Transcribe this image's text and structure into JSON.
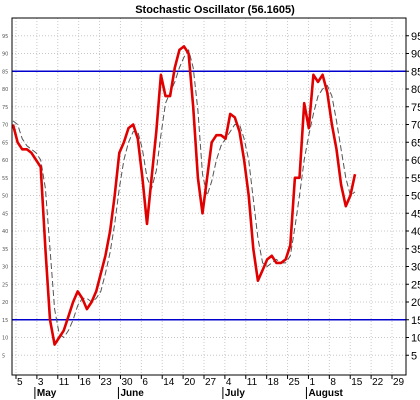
{
  "chart_data": {
    "type": "line",
    "title": "Stochastic Oscillator (56.1605)",
    "ylim": [
      0,
      100
    ],
    "y_ticks": [
      5,
      10,
      15,
      20,
      25,
      30,
      35,
      40,
      45,
      50,
      55,
      60,
      65,
      70,
      75,
      80,
      85,
      90,
      95
    ],
    "x_ticks": [
      "5",
      "3",
      "11",
      "16",
      "23",
      "30",
      "6",
      "14",
      "20",
      "27",
      "4",
      "11",
      "18",
      "25",
      "1",
      "8",
      "15",
      "22",
      "29"
    ],
    "month_labels": [
      "May",
      "June",
      "July",
      "August"
    ],
    "reference_lines": [
      15,
      85
    ],
    "grid": true,
    "colors": {
      "main": "#e00000",
      "signal": "#555555",
      "reference": "#0000cc",
      "grid": "#c8c8c8"
    },
    "series": [
      {
        "style": "solid",
        "values": [
          70,
          65,
          63,
          63,
          62,
          60,
          58,
          35,
          15,
          8,
          10,
          12,
          16,
          20,
          23,
          21,
          18,
          20,
          23,
          28,
          33,
          40,
          50,
          62,
          65,
          69,
          70,
          66,
          55,
          42,
          55,
          68,
          84,
          78,
          78,
          86,
          91,
          92,
          90,
          75,
          55,
          45,
          55,
          65,
          67,
          67,
          66,
          73,
          72,
          68,
          60,
          50,
          35,
          26,
          29,
          32,
          33,
          31,
          31,
          32,
          36,
          55,
          55,
          76,
          69,
          84,
          82,
          84,
          79,
          70,
          63,
          53,
          47,
          50,
          56
        ]
      },
      {
        "style": "dashed",
        "values": [
          71,
          70,
          66,
          64,
          63,
          62,
          60,
          52,
          35,
          18,
          11,
          10,
          12,
          15,
          19,
          21,
          21,
          20,
          21,
          23,
          28,
          34,
          42,
          52,
          60,
          65,
          68,
          68,
          63,
          55,
          52,
          57,
          67,
          76,
          79,
          82,
          86,
          89,
          91,
          86,
          74,
          56,
          50,
          54,
          60,
          64,
          66,
          68,
          70,
          70,
          66,
          60,
          49,
          38,
          31,
          30,
          31,
          32,
          31,
          31,
          33,
          41,
          50,
          60,
          67,
          73,
          78,
          80,
          81,
          78,
          71,
          63,
          55,
          50,
          51
        ]
      }
    ]
  }
}
